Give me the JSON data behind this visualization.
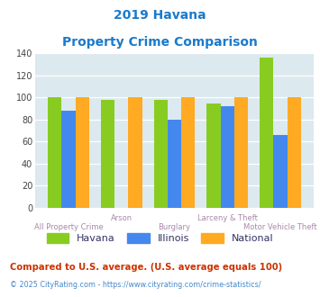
{
  "title_line1": "2019 Havana",
  "title_line2": "Property Crime Comparison",
  "title_color": "#1a7acc",
  "categories": [
    "All Property Crime",
    "Arson",
    "Burglary",
    "Larceny & Theft",
    "Motor Vehicle Theft"
  ],
  "havana": [
    100,
    98,
    98,
    95,
    136
  ],
  "illinois": [
    88,
    0,
    80,
    92,
    66
  ],
  "national": [
    100,
    100,
    100,
    100,
    100
  ],
  "havana_color": "#88cc22",
  "illinois_color": "#4488ee",
  "national_color": "#ffaa22",
  "bg_color": "#dce9ef",
  "ylim": [
    0,
    140
  ],
  "yticks": [
    0,
    20,
    40,
    60,
    80,
    100,
    120,
    140
  ],
  "xlabel_color": "#aa88aa",
  "footnote1": "Compared to U.S. average. (U.S. average equals 100)",
  "footnote2": "© 2025 CityRating.com - https://www.cityrating.com/crime-statistics/",
  "footnote1_color": "#cc3300",
  "footnote2_color": "#4488cc",
  "legend_text_color": "#333366"
}
